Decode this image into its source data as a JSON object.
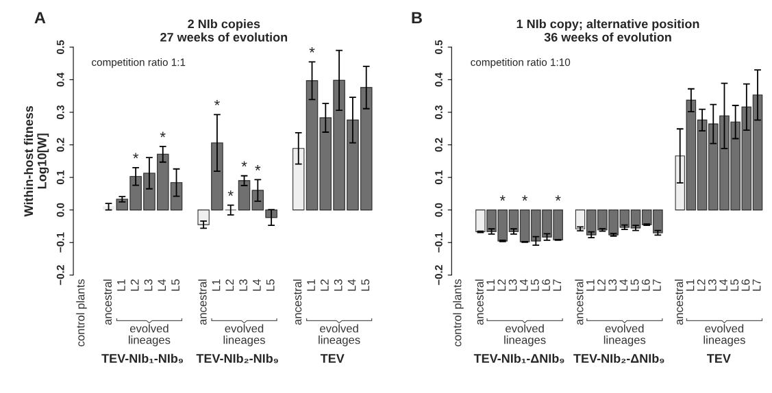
{
  "chart_data": [
    {
      "type": "bar",
      "title": "2 NIb copies\n27 weeks of evolution",
      "ylabel": "Within-host fitness\nLog10[W]",
      "annotations": [
        "A",
        "competition ratio 1:1",
        "TEV-NIb₁-NIb₉",
        "TEV-NIb₂-NIb₉",
        "TEV",
        "evolved\nlineages",
        "evolved\nlineages",
        "evolved\nlineages"
      ],
      "categories": [
        "control plants",
        null,
        "ancestral",
        "L1",
        "L2",
        "L3",
        "L4",
        "L5",
        null,
        "ancestral",
        "L1",
        "L2",
        "L3",
        "L4",
        "L5",
        null,
        "ancestral",
        "L1",
        "L2",
        "L3",
        "L4",
        "L5"
      ],
      "values": [
        null,
        null,
        0.01,
        0.033,
        0.103,
        0.113,
        0.171,
        0.084,
        null,
        -0.045,
        0.206,
        0.0,
        0.09,
        0.06,
        -0.023,
        null,
        0.189,
        0.397,
        0.283,
        0.398,
        0.276,
        0.376
      ],
      "errors": [
        null,
        null,
        0.01,
        0.008,
        0.027,
        0.048,
        0.024,
        0.042,
        null,
        0.011,
        0.087,
        0.015,
        0.015,
        0.033,
        0.024,
        null,
        0.048,
        0.058,
        0.044,
        0.092,
        0.07,
        0.065
      ],
      "colors": [
        null,
        null,
        "#efefef",
        "#707070",
        "#707070",
        "#707070",
        "#707070",
        "#707070",
        null,
        "#efefef",
        "#707070",
        "#707070",
        "#707070",
        "#707070",
        "#707070",
        null,
        "#efefef",
        "#707070",
        "#707070",
        "#707070",
        "#707070",
        "#707070"
      ],
      "value_labels": [
        null,
        null,
        null,
        null,
        "*",
        null,
        "*",
        null,
        null,
        null,
        "*",
        "*",
        "*",
        "*",
        null,
        null,
        null,
        "*",
        null,
        null,
        null,
        null
      ],
      "ylim": [
        -0.2,
        0.5
      ],
      "yticks": [
        {
          "value": -0.2,
          "label": "−0.2"
        },
        {
          "value": -0.1,
          "label": "−0.1"
        },
        {
          "value": 0,
          "label": "0.0"
        },
        0.1,
        0.2,
        0.3,
        0.4,
        0.5
      ],
      "grid": false
    },
    {
      "type": "bar",
      "title": "1 NIb copy; alternative position\n36 weeks of evolution",
      "annotations": [
        "B",
        "competition ratio 1:10",
        "TEV-NIb₁-ΔNIb₉",
        "TEV-NIb₂-ΔNIb₉",
        "TEV",
        "evolved\nlineages",
        "evolved\nlineages",
        "evolved\nlineages"
      ],
      "categories": [
        "control plants",
        null,
        "ancestral",
        "L1",
        "L2",
        "L3",
        "L4",
        "L5",
        "L6",
        "L7",
        null,
        "ancestral",
        "L1",
        "L2",
        "L3",
        "L4",
        "L5",
        "L6",
        "L7",
        null,
        "ancestral",
        "L1",
        "L2",
        "L3",
        "L4",
        "L5",
        "L6",
        "L7"
      ],
      "values": [
        null,
        null,
        -0.067,
        -0.066,
        -0.095,
        -0.066,
        -0.098,
        -0.095,
        -0.083,
        -0.092,
        null,
        -0.058,
        -0.076,
        -0.061,
        -0.076,
        -0.053,
        -0.055,
        -0.045,
        -0.07,
        null,
        0.166,
        0.337,
        0.276,
        0.264,
        0.289,
        0.27,
        0.316,
        0.353
      ],
      "errors": [
        null,
        null,
        0.002,
        0.008,
        0.002,
        0.008,
        0.001,
        0.013,
        0.01,
        0.001,
        null,
        0.006,
        0.009,
        0.004,
        0.004,
        0.007,
        0.008,
        0.002,
        0.007,
        null,
        0.083,
        0.035,
        0.033,
        0.06,
        0.1,
        0.051,
        0.071,
        0.077
      ],
      "colors": [
        null,
        null,
        "#efefef",
        "#707070",
        "#707070",
        "#707070",
        "#707070",
        "#707070",
        "#707070",
        "#707070",
        null,
        "#efefef",
        "#707070",
        "#707070",
        "#707070",
        "#707070",
        "#707070",
        "#707070",
        "#707070",
        null,
        "#efefef",
        "#707070",
        "#707070",
        "#707070",
        "#707070",
        "#707070",
        "#707070",
        "#707070"
      ],
      "value_labels": [
        null,
        null,
        null,
        null,
        "*",
        null,
        "*",
        null,
        null,
        "*",
        null,
        null,
        null,
        null,
        null,
        null,
        null,
        null,
        null,
        null,
        null,
        null,
        null,
        null,
        null,
        null,
        null,
        null
      ],
      "ylim": [
        -0.2,
        0.5
      ],
      "yticks": [
        {
          "value": -0.2,
          "label": "−0.2"
        },
        {
          "value": -0.1,
          "label": "−0.1"
        },
        {
          "value": 0,
          "label": "0.0"
        },
        0.1,
        0.2,
        0.3,
        0.4,
        0.5
      ],
      "grid": false
    }
  ]
}
